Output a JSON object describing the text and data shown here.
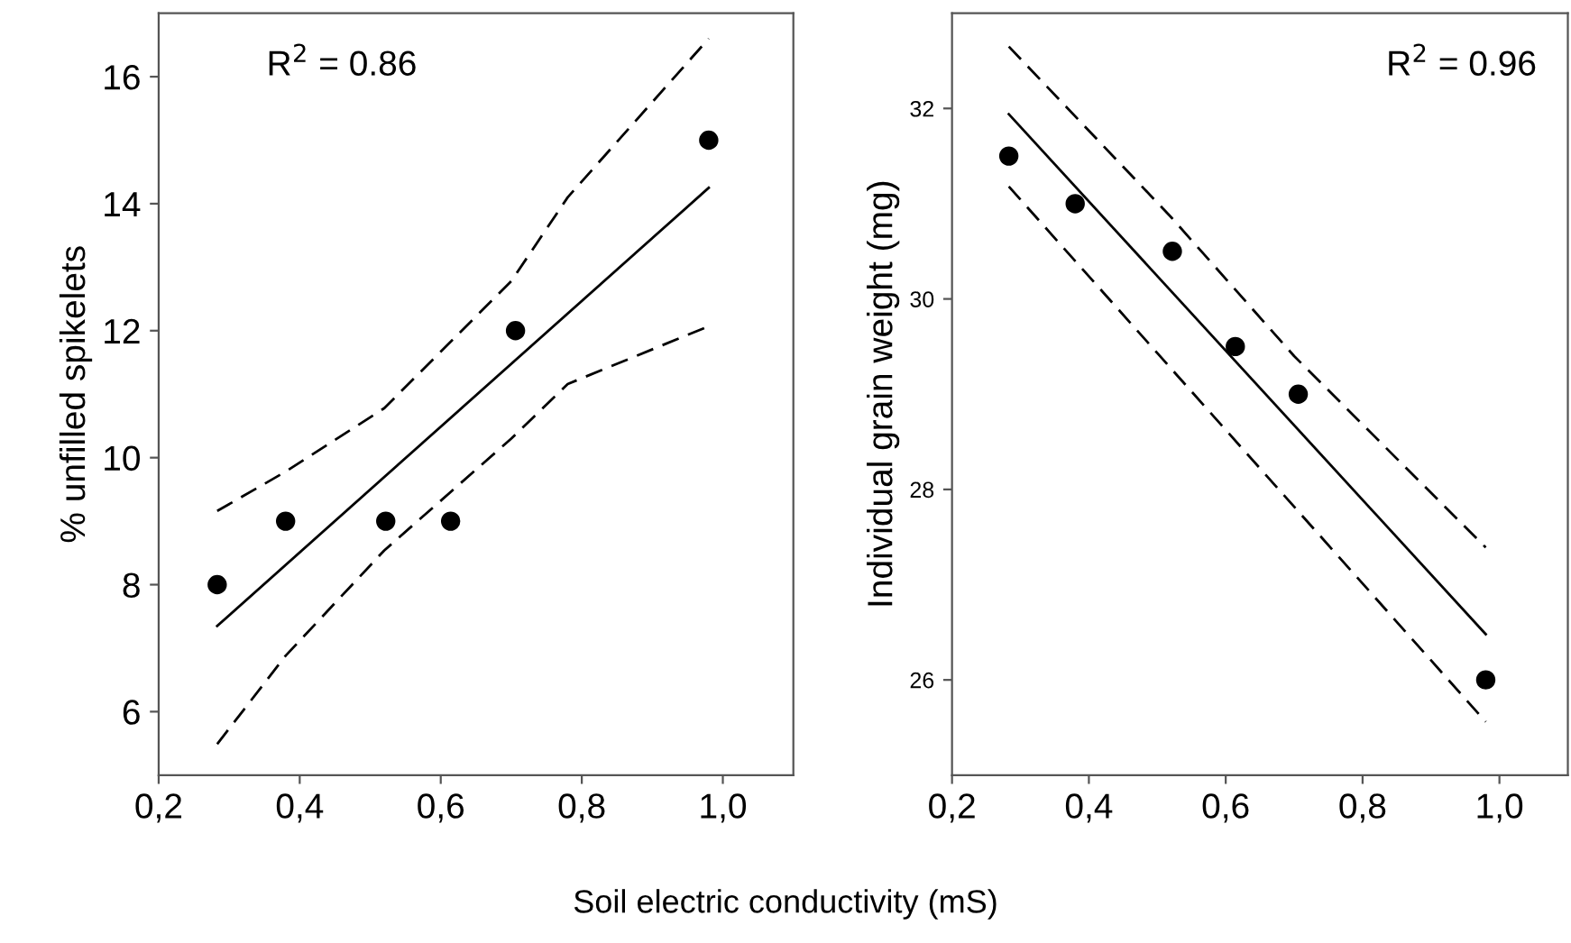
{
  "chart_data": [
    {
      "type": "scatter",
      "xlabel": "Soil electric conductivity (mS)",
      "ylabel": "% unfilled spikelets",
      "annotations": [
        "R$^{2}$ = 0.86"
      ],
      "xlim": [
        0.2,
        1.1
      ],
      "ylim": [
        5,
        17
      ],
      "xticks": [
        {
          "value": 0.2,
          "label": "0,2"
        },
        {
          "value": 0.4,
          "label": "0,4"
        },
        {
          "value": 0.6,
          "label": "0,6"
        },
        {
          "value": 0.8,
          "label": "0,8"
        },
        {
          "value": 1.0,
          "label": "1,0"
        }
      ],
      "yticks": [
        6,
        8,
        10,
        12,
        14,
        16
      ],
      "grid": false,
      "legend": false,
      "series": [
        {
          "marker": "circle",
          "color": "#000000",
          "x": [
            0.283,
            0.38,
            0.522,
            0.614,
            0.706,
            0.98
          ],
          "values": [
            8,
            9,
            9,
            9,
            12,
            15
          ]
        },
        {
          "type": "line",
          "line_style": "solid",
          "marker": "none",
          "color": "#000000",
          "x": [
            0.283,
            0.98
          ],
          "values": [
            7.35,
            14.25
          ]
        },
        {
          "type": "line",
          "line_style": "dashed",
          "marker": "none",
          "color": "#000000",
          "x": [
            0.283,
            0.38,
            0.52,
            0.7,
            0.78,
            0.98
          ],
          "values": [
            9.16,
            9.78,
            10.78,
            12.78,
            14.1,
            16.6
          ]
        },
        {
          "type": "line",
          "line_style": "dashed",
          "marker": "none",
          "color": "#000000",
          "x": [
            0.283,
            0.38,
            0.52,
            0.7,
            0.78,
            0.98
          ],
          "values": [
            5.49,
            6.88,
            8.54,
            10.3,
            11.16,
            12.07
          ]
        }
      ]
    },
    {
      "type": "scatter",
      "ylabel": "Individual grain weight (mg)",
      "annotations": [
        "R$^{2}$ = 0.96"
      ],
      "xlim": [
        0.2,
        1.1
      ],
      "ylim": [
        25,
        33
      ],
      "xticks": [
        {
          "value": 0.2,
          "label": "0,2"
        },
        {
          "value": 0.4,
          "label": "0,4"
        },
        {
          "value": 0.6,
          "label": "0,6"
        },
        {
          "value": 0.8,
          "label": "0,8"
        },
        {
          "value": 1.0,
          "label": "1,0"
        }
      ],
      "yticks": [
        26,
        28,
        30,
        32
      ],
      "grid": false,
      "legend": false,
      "series": [
        {
          "marker": "circle",
          "color": "#000000",
          "x": [
            0.283,
            0.38,
            0.522,
            0.614,
            0.706,
            0.98
          ],
          "values": [
            31.5,
            31,
            30.5,
            29.5,
            29,
            26
          ]
        },
        {
          "type": "line",
          "line_style": "solid",
          "marker": "none",
          "color": "#000000",
          "x": [
            0.283,
            0.98
          ],
          "values": [
            31.94,
            26.48
          ]
        },
        {
          "type": "line",
          "line_style": "dashed",
          "marker": "none",
          "color": "#000000",
          "x": [
            0.283,
            0.52,
            0.7,
            0.98
          ],
          "values": [
            32.65,
            30.86,
            29.4,
            27.39
          ]
        },
        {
          "type": "line",
          "line_style": "dashed",
          "marker": "none",
          "color": "#000000",
          "x": [
            0.283,
            0.52,
            0.98
          ],
          "values": [
            31.18,
            29.27,
            25.56
          ]
        }
      ]
    }
  ]
}
